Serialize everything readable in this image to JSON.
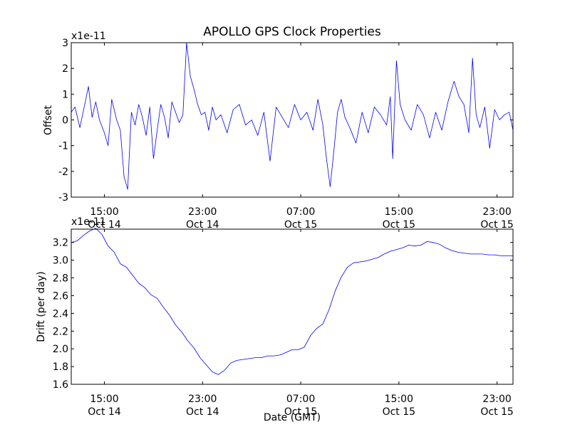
{
  "figure": {
    "title": "APOLLO GPS Clock Properties",
    "xlabel": "Date (GMT)"
  },
  "x_ticks": [
    {
      "time": "15:00",
      "date": "Oct 14",
      "hours": 15
    },
    {
      "time": "23:00",
      "date": "Oct 14",
      "hours": 23
    },
    {
      "time": "07:00",
      "date": "Oct 15",
      "hours": 31
    },
    {
      "time": "15:00",
      "date": "Oct 15",
      "hours": 39
    },
    {
      "time": "23:00",
      "date": "Oct 15",
      "hours": 47
    }
  ],
  "chart_data": [
    {
      "type": "line",
      "title": "APOLLO GPS Clock Properties",
      "ylabel": "Offset",
      "y_multiplier": "x1e-11",
      "xlim_hours": [
        12.3,
        48.3
      ],
      "ylim": [
        -3,
        3
      ],
      "yticks": [
        -3,
        -2,
        -1,
        0,
        1,
        2,
        3
      ],
      "color": "#0000ff",
      "series": [
        {
          "x_hours": [
            12.3,
            12.6,
            13.0,
            13.4,
            13.7,
            14.0,
            14.3,
            14.6,
            15.0,
            15.3,
            15.6,
            16.0,
            16.3,
            16.6,
            16.9,
            17.2,
            17.5,
            17.8,
            18.1,
            18.4,
            18.7,
            19.0,
            19.3,
            19.6,
            19.9,
            20.2,
            20.5,
            20.8,
            21.1,
            21.4,
            21.7,
            22.0,
            22.3,
            22.6,
            22.9,
            23.2,
            23.5,
            23.8,
            24.1,
            24.5,
            25.0,
            25.5,
            26.0,
            26.5,
            27.0,
            27.5,
            28.0,
            28.5,
            29.0,
            29.5,
            30.0,
            30.5,
            31.0,
            31.5,
            32.0,
            32.4,
            32.8,
            33.1,
            33.4,
            33.7,
            34.0,
            34.3,
            34.6,
            35.0,
            35.5,
            36.0,
            36.5,
            37.0,
            37.5,
            38.0,
            38.3,
            38.5,
            38.8,
            39.1,
            39.5,
            40.0,
            40.5,
            41.0,
            41.5,
            42.0,
            42.5,
            43.0,
            43.5,
            43.9,
            44.3,
            44.7,
            45.0,
            45.3,
            45.6,
            46.0,
            46.4,
            46.8,
            47.2,
            47.6,
            48.0,
            48.3
          ],
          "offset": [
            0.3,
            0.5,
            -0.3,
            0.6,
            1.3,
            0.1,
            0.7,
            0.0,
            -0.5,
            -1.0,
            0.8,
            0.0,
            -0.4,
            -2.2,
            -2.7,
            0.3,
            -0.2,
            0.6,
            0.1,
            -0.6,
            0.5,
            -1.5,
            -0.4,
            0.6,
            0.1,
            -0.7,
            0.7,
            0.3,
            -0.1,
            0.2,
            3.0,
            1.7,
            1.2,
            0.6,
            0.2,
            0.3,
            -0.4,
            0.5,
            0.0,
            0.2,
            -0.5,
            0.4,
            0.6,
            -0.2,
            0.0,
            -0.6,
            0.3,
            -1.6,
            0.5,
            0.1,
            -0.3,
            0.6,
            0.0,
            0.3,
            -0.4,
            0.8,
            -0.2,
            -1.5,
            -2.6,
            -1.2,
            0.3,
            0.8,
            0.1,
            -0.3,
            -0.9,
            0.3,
            -0.5,
            0.5,
            0.2,
            -0.2,
            0.9,
            -1.5,
            2.3,
            0.6,
            0.0,
            -0.4,
            0.6,
            0.2,
            -0.7,
            0.3,
            -0.4,
            0.7,
            1.5,
            0.9,
            0.6,
            -0.5,
            2.4,
            0.2,
            -0.3,
            0.5,
            -1.1,
            0.4,
            0.0,
            0.2,
            0.3,
            -0.4
          ]
        }
      ]
    },
    {
      "type": "line",
      "ylabel": "Drift (per day)",
      "y_multiplier": "x1e-11",
      "xlabel": "Date (GMT)",
      "xlim_hours": [
        12.3,
        48.3
      ],
      "ylim": [
        1.6,
        3.35
      ],
      "yticks": [
        1.6,
        1.8,
        2.0,
        2.2,
        2.4,
        2.6,
        2.8,
        3.0,
        3.2
      ],
      "color": "#0000ff",
      "series": [
        {
          "x_hours": [
            12.3,
            12.8,
            13.3,
            13.8,
            14.3,
            14.8,
            15.3,
            15.8,
            16.3,
            16.8,
            17.3,
            17.8,
            18.3,
            18.8,
            19.3,
            19.8,
            20.3,
            20.8,
            21.3,
            21.8,
            22.3,
            22.8,
            23.3,
            23.8,
            24.3,
            24.8,
            25.3,
            25.8,
            26.3,
            26.8,
            27.3,
            27.8,
            28.3,
            28.8,
            29.3,
            29.8,
            30.3,
            30.8,
            31.3,
            31.8,
            32.3,
            32.8,
            33.3,
            33.8,
            34.3,
            34.8,
            35.3,
            35.8,
            36.3,
            36.8,
            37.3,
            37.8,
            38.3,
            38.8,
            39.3,
            39.8,
            40.3,
            40.8,
            41.3,
            41.8,
            42.3,
            42.8,
            43.3,
            43.8,
            44.3,
            44.8,
            45.3,
            45.8,
            46.3,
            46.8,
            47.3,
            47.8,
            48.3
          ],
          "drift": [
            3.2,
            3.22,
            3.28,
            3.33,
            3.36,
            3.29,
            3.16,
            3.09,
            2.96,
            2.92,
            2.83,
            2.74,
            2.69,
            2.61,
            2.57,
            2.47,
            2.38,
            2.27,
            2.19,
            2.09,
            2.01,
            1.9,
            1.82,
            1.74,
            1.71,
            1.76,
            1.84,
            1.87,
            1.88,
            1.89,
            1.9,
            1.9,
            1.92,
            1.92,
            1.93,
            1.96,
            1.99,
            1.99,
            2.02,
            2.15,
            2.23,
            2.28,
            2.44,
            2.65,
            2.81,
            2.92,
            2.97,
            2.98,
            2.99,
            3.01,
            3.03,
            3.07,
            3.1,
            3.12,
            3.14,
            3.17,
            3.16,
            3.17,
            3.21,
            3.2,
            3.18,
            3.14,
            3.11,
            3.09,
            3.08,
            3.07,
            3.07,
            3.07,
            3.06,
            3.06,
            3.05,
            3.05,
            3.05
          ]
        }
      ]
    }
  ]
}
